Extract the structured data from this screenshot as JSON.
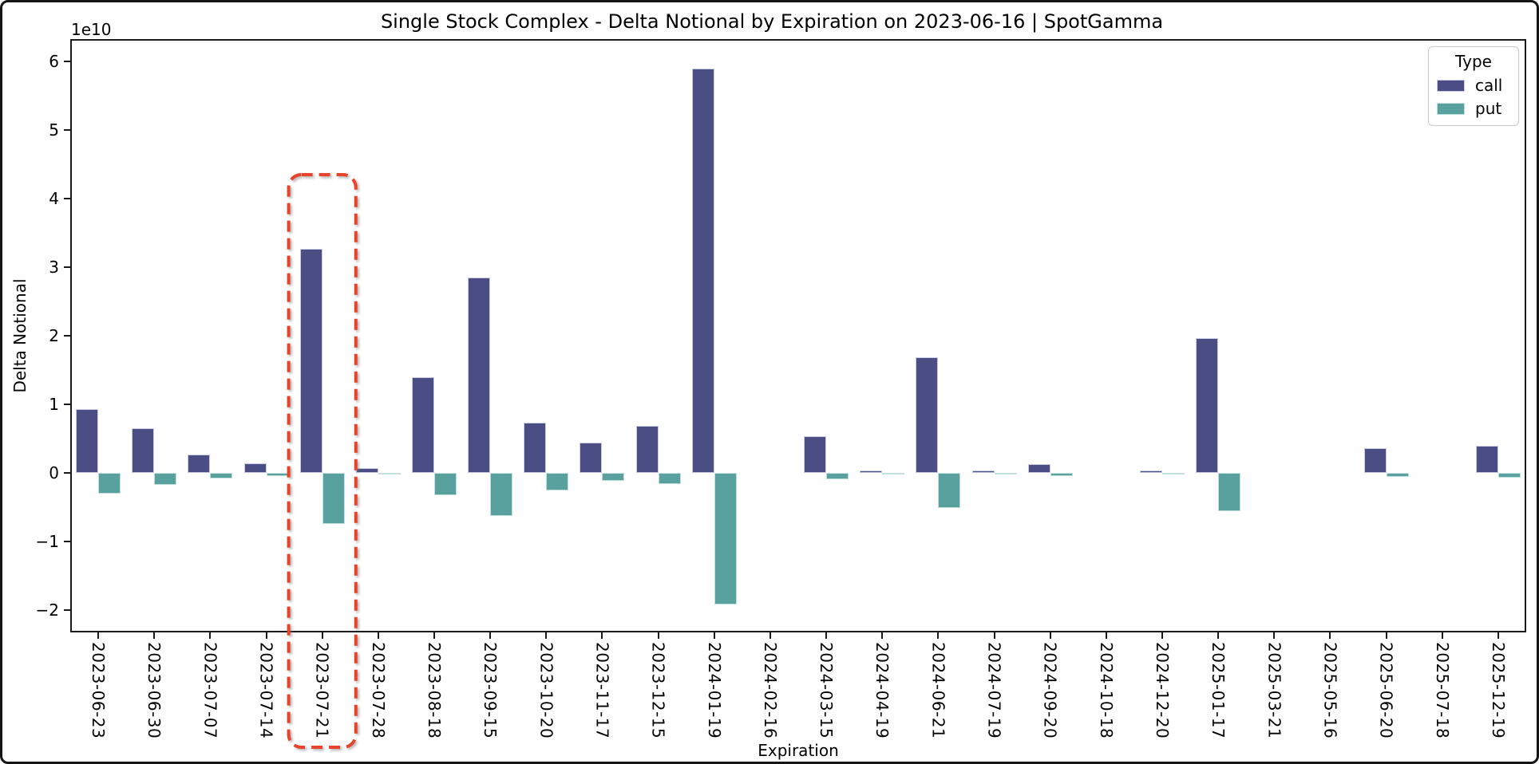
{
  "title": "Single Stock Complex - Delta Notional by Expiration on 2023-06-16 | SpotGamma",
  "axes": {
    "x": {
      "label": "Expiration"
    },
    "y": {
      "label": "Delta Notional",
      "offset_label": "1e10",
      "ticks": [
        6,
        5,
        4,
        3,
        2,
        1,
        0,
        -1,
        -2
      ]
    }
  },
  "legend": {
    "title": "Type",
    "entries": [
      {
        "label": "call",
        "color": "#4A4E85",
        "edge": "#c9cbe3"
      },
      {
        "label": "put",
        "color": "#58A19E",
        "edge": "#c4e0de"
      }
    ]
  },
  "annotation": {
    "type": "dashed-rounded-box",
    "highlighted_category": "2023-07-21",
    "color": "#E8432B"
  },
  "chart_data": {
    "type": "bar",
    "title": "Single Stock Complex - Delta Notional by Expiration on 2023-06-16 | SpotGamma",
    "xlabel": "Expiration",
    "ylabel": "Delta Notional",
    "value_scale": "1e10",
    "ylim": [
      -2.33,
      6.33
    ],
    "grid": false,
    "legend_position": "upper right",
    "categories": [
      "2023-06-23",
      "2023-06-30",
      "2023-07-07",
      "2023-07-14",
      "2023-07-21",
      "2023-07-28",
      "2023-08-18",
      "2023-09-15",
      "2023-10-20",
      "2023-11-17",
      "2023-12-15",
      "2024-01-19",
      "2024-02-16",
      "2024-03-15",
      "2024-04-19",
      "2024-06-21",
      "2024-07-19",
      "2024-09-20",
      "2024-10-18",
      "2024-12-20",
      "2025-01-17",
      "2025-03-21",
      "2025-05-16",
      "2025-06-20",
      "2025-07-18",
      "2025-12-19"
    ],
    "series": [
      {
        "name": "call",
        "color": "#4A4E85",
        "values": [
          0.93,
          0.65,
          0.27,
          0.14,
          3.27,
          0.07,
          1.4,
          2.85,
          0.73,
          0.44,
          0.69,
          5.9,
          0,
          0.53,
          0.03,
          1.68,
          0.03,
          0.13,
          0,
          0.03,
          1.96,
          0,
          0,
          0.36,
          0,
          0.39
        ]
      },
      {
        "name": "put",
        "color": "#58A19E",
        "values": [
          -0.31,
          -0.18,
          -0.08,
          -0.05,
          -0.75,
          -0.03,
          -0.33,
          -0.63,
          -0.26,
          -0.12,
          -0.17,
          -1.92,
          0,
          -0.1,
          -0.01,
          -0.52,
          -0.01,
          -0.05,
          0,
          -0.01,
          -0.56,
          0,
          0,
          -0.06,
          0,
          -0.07
        ]
      }
    ]
  }
}
